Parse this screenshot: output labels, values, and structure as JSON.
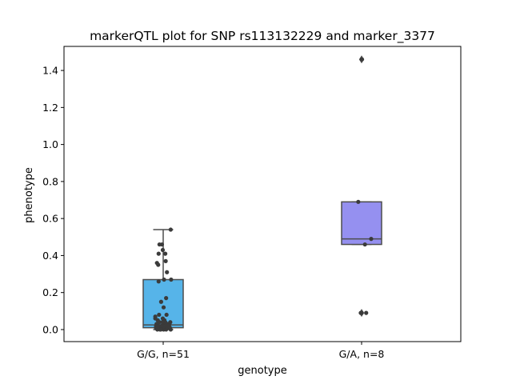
{
  "chart_data": {
    "type": "box",
    "title": "markerQTL plot for SNP rs113132229 and marker_3377",
    "xlabel": "genotype",
    "ylabel": "phenotype",
    "ylim": [
      -0.065,
      1.53
    ],
    "yticks": [
      0.0,
      0.2,
      0.4,
      0.6,
      0.8,
      1.0,
      1.2,
      1.4
    ],
    "ytick_labels": [
      "0.0",
      "0.2",
      "0.4",
      "0.6",
      "0.8",
      "1.0",
      "1.2",
      "1.4"
    ],
    "grid": false,
    "legend": "none",
    "categories": [
      "G/G, n=51",
      "G/A, n=8"
    ],
    "groups": [
      {
        "label": "G/G, n=51",
        "color": "#56b4e9",
        "box": {
          "q1": 0.01,
          "median": 0.025,
          "q3": 0.27,
          "whisker_low": 0.0,
          "whisker_high": 0.54
        },
        "outliers": [],
        "points": [
          {
            "j": -0.35,
            "y": 0.01
          },
          {
            "j": -0.28,
            "y": 0.0
          },
          {
            "j": -0.22,
            "y": 0.02
          },
          {
            "j": -0.15,
            "y": 0.0
          },
          {
            "j": -0.1,
            "y": 0.01
          },
          {
            "j": -0.05,
            "y": 0.02
          },
          {
            "j": 0.02,
            "y": 0.0
          },
          {
            "j": 0.08,
            "y": 0.01
          },
          {
            "j": 0.14,
            "y": 0.0
          },
          {
            "j": 0.2,
            "y": 0.01
          },
          {
            "j": 0.26,
            "y": 0.02
          },
          {
            "j": 0.32,
            "y": 0.01
          },
          {
            "j": 0.36,
            "y": 0.0
          },
          {
            "j": -0.32,
            "y": 0.03
          },
          {
            "j": -0.18,
            "y": 0.04
          },
          {
            "j": 0.0,
            "y": 0.03
          },
          {
            "j": 0.16,
            "y": 0.02
          },
          {
            "j": 0.34,
            "y": 0.04
          },
          {
            "j": -0.26,
            "y": 0.05
          },
          {
            "j": -0.08,
            "y": 0.02
          },
          {
            "j": 0.1,
            "y": 0.04
          },
          {
            "j": 0.28,
            "y": 0.02
          },
          {
            "j": -0.38,
            "y": 0.06
          },
          {
            "j": -0.3,
            "y": 0.36
          },
          {
            "j": -0.24,
            "y": 0.35
          },
          {
            "j": -0.22,
            "y": 0.41
          },
          {
            "j": -0.18,
            "y": 0.46
          },
          {
            "j": -0.06,
            "y": 0.46
          },
          {
            "j": -0.02,
            "y": 0.43
          },
          {
            "j": 0.1,
            "y": 0.41
          },
          {
            "j": 0.12,
            "y": 0.37
          },
          {
            "j": 0.18,
            "y": 0.31
          },
          {
            "j": 0.36,
            "y": 0.54
          },
          {
            "j": 0.04,
            "y": 0.27
          },
          {
            "j": 0.38,
            "y": 0.27
          },
          {
            "j": -0.22,
            "y": 0.26
          },
          {
            "j": 0.14,
            "y": 0.17
          },
          {
            "j": -0.1,
            "y": 0.15
          },
          {
            "j": 0.02,
            "y": 0.12
          },
          {
            "j": -0.38,
            "y": 0.07
          },
          {
            "j": -0.2,
            "y": 0.08
          },
          {
            "j": 0.16,
            "y": 0.08
          },
          {
            "j": -0.04,
            "y": 0.04
          },
          {
            "j": 0.24,
            "y": 0.01
          },
          {
            "j": -0.12,
            "y": 0.0
          },
          {
            "j": 0.3,
            "y": 0.03
          },
          {
            "j": -0.34,
            "y": 0.02
          },
          {
            "j": 0.06,
            "y": 0.05
          },
          {
            "j": -0.26,
            "y": 0.01
          },
          {
            "j": 0.2,
            "y": 0.03
          },
          {
            "j": -0.02,
            "y": 0.06
          }
        ]
      },
      {
        "label": "G/A, n=8",
        "color": "#9590f0",
        "box": {
          "q1": 0.46,
          "median": 0.49,
          "q3": 0.69,
          "whisker_low": 0.46,
          "whisker_high": 0.69
        },
        "outliers": [
          1.46,
          0.09
        ],
        "points": [
          {
            "j": -0.16,
            "y": 0.69
          },
          {
            "j": 0.46,
            "y": 0.49
          },
          {
            "j": 0.16,
            "y": 0.46
          },
          {
            "j": 0.0,
            "y": 1.46
          },
          {
            "j": 0.02,
            "y": 1.46
          },
          {
            "j": 0.0,
            "y": 0.09
          },
          {
            "j": 0.22,
            "y": 0.09
          },
          {
            "j": -0.04,
            "y": 0.09
          }
        ]
      }
    ]
  }
}
